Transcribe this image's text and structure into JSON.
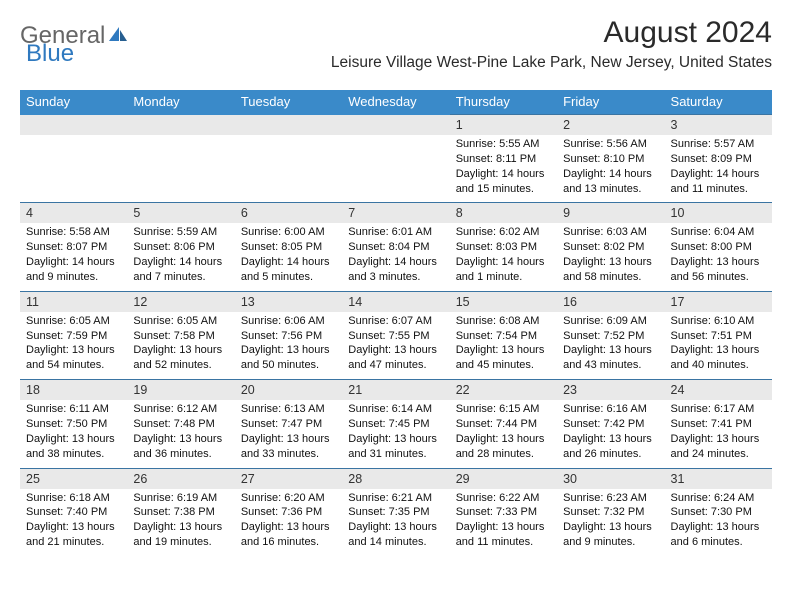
{
  "logo": {
    "text_part1": "General",
    "text_part2": "Blue",
    "icon_color": "#2f79bf"
  },
  "header": {
    "month_title": "August 2024",
    "location": "Leisure Village West-Pine Lake Park, New Jersey, United States"
  },
  "colors": {
    "header_bg": "#3a8ac9",
    "divider": "#3a74a2",
    "daynum_bg": "#e9e9e9",
    "text": "#111111"
  },
  "day_names": [
    "Sunday",
    "Monday",
    "Tuesday",
    "Wednesday",
    "Thursday",
    "Friday",
    "Saturday"
  ],
  "weeks": [
    {
      "days": [
        {
          "n": "",
          "sr": "",
          "ss": "",
          "dl": ""
        },
        {
          "n": "",
          "sr": "",
          "ss": "",
          "dl": ""
        },
        {
          "n": "",
          "sr": "",
          "ss": "",
          "dl": ""
        },
        {
          "n": "",
          "sr": "",
          "ss": "",
          "dl": ""
        },
        {
          "n": "1",
          "sr": "Sunrise: 5:55 AM",
          "ss": "Sunset: 8:11 PM",
          "dl": "Daylight: 14 hours and 15 minutes."
        },
        {
          "n": "2",
          "sr": "Sunrise: 5:56 AM",
          "ss": "Sunset: 8:10 PM",
          "dl": "Daylight: 14 hours and 13 minutes."
        },
        {
          "n": "3",
          "sr": "Sunrise: 5:57 AM",
          "ss": "Sunset: 8:09 PM",
          "dl": "Daylight: 14 hours and 11 minutes."
        }
      ]
    },
    {
      "days": [
        {
          "n": "4",
          "sr": "Sunrise: 5:58 AM",
          "ss": "Sunset: 8:07 PM",
          "dl": "Daylight: 14 hours and 9 minutes."
        },
        {
          "n": "5",
          "sr": "Sunrise: 5:59 AM",
          "ss": "Sunset: 8:06 PM",
          "dl": "Daylight: 14 hours and 7 minutes."
        },
        {
          "n": "6",
          "sr": "Sunrise: 6:00 AM",
          "ss": "Sunset: 8:05 PM",
          "dl": "Daylight: 14 hours and 5 minutes."
        },
        {
          "n": "7",
          "sr": "Sunrise: 6:01 AM",
          "ss": "Sunset: 8:04 PM",
          "dl": "Daylight: 14 hours and 3 minutes."
        },
        {
          "n": "8",
          "sr": "Sunrise: 6:02 AM",
          "ss": "Sunset: 8:03 PM",
          "dl": "Daylight: 14 hours and 1 minute."
        },
        {
          "n": "9",
          "sr": "Sunrise: 6:03 AM",
          "ss": "Sunset: 8:02 PM",
          "dl": "Daylight: 13 hours and 58 minutes."
        },
        {
          "n": "10",
          "sr": "Sunrise: 6:04 AM",
          "ss": "Sunset: 8:00 PM",
          "dl": "Daylight: 13 hours and 56 minutes."
        }
      ]
    },
    {
      "days": [
        {
          "n": "11",
          "sr": "Sunrise: 6:05 AM",
          "ss": "Sunset: 7:59 PM",
          "dl": "Daylight: 13 hours and 54 minutes."
        },
        {
          "n": "12",
          "sr": "Sunrise: 6:05 AM",
          "ss": "Sunset: 7:58 PM",
          "dl": "Daylight: 13 hours and 52 minutes."
        },
        {
          "n": "13",
          "sr": "Sunrise: 6:06 AM",
          "ss": "Sunset: 7:56 PM",
          "dl": "Daylight: 13 hours and 50 minutes."
        },
        {
          "n": "14",
          "sr": "Sunrise: 6:07 AM",
          "ss": "Sunset: 7:55 PM",
          "dl": "Daylight: 13 hours and 47 minutes."
        },
        {
          "n": "15",
          "sr": "Sunrise: 6:08 AM",
          "ss": "Sunset: 7:54 PM",
          "dl": "Daylight: 13 hours and 45 minutes."
        },
        {
          "n": "16",
          "sr": "Sunrise: 6:09 AM",
          "ss": "Sunset: 7:52 PM",
          "dl": "Daylight: 13 hours and 43 minutes."
        },
        {
          "n": "17",
          "sr": "Sunrise: 6:10 AM",
          "ss": "Sunset: 7:51 PM",
          "dl": "Daylight: 13 hours and 40 minutes."
        }
      ]
    },
    {
      "days": [
        {
          "n": "18",
          "sr": "Sunrise: 6:11 AM",
          "ss": "Sunset: 7:50 PM",
          "dl": "Daylight: 13 hours and 38 minutes."
        },
        {
          "n": "19",
          "sr": "Sunrise: 6:12 AM",
          "ss": "Sunset: 7:48 PM",
          "dl": "Daylight: 13 hours and 36 minutes."
        },
        {
          "n": "20",
          "sr": "Sunrise: 6:13 AM",
          "ss": "Sunset: 7:47 PM",
          "dl": "Daylight: 13 hours and 33 minutes."
        },
        {
          "n": "21",
          "sr": "Sunrise: 6:14 AM",
          "ss": "Sunset: 7:45 PM",
          "dl": "Daylight: 13 hours and 31 minutes."
        },
        {
          "n": "22",
          "sr": "Sunrise: 6:15 AM",
          "ss": "Sunset: 7:44 PM",
          "dl": "Daylight: 13 hours and 28 minutes."
        },
        {
          "n": "23",
          "sr": "Sunrise: 6:16 AM",
          "ss": "Sunset: 7:42 PM",
          "dl": "Daylight: 13 hours and 26 minutes."
        },
        {
          "n": "24",
          "sr": "Sunrise: 6:17 AM",
          "ss": "Sunset: 7:41 PM",
          "dl": "Daylight: 13 hours and 24 minutes."
        }
      ]
    },
    {
      "days": [
        {
          "n": "25",
          "sr": "Sunrise: 6:18 AM",
          "ss": "Sunset: 7:40 PM",
          "dl": "Daylight: 13 hours and 21 minutes."
        },
        {
          "n": "26",
          "sr": "Sunrise: 6:19 AM",
          "ss": "Sunset: 7:38 PM",
          "dl": "Daylight: 13 hours and 19 minutes."
        },
        {
          "n": "27",
          "sr": "Sunrise: 6:20 AM",
          "ss": "Sunset: 7:36 PM",
          "dl": "Daylight: 13 hours and 16 minutes."
        },
        {
          "n": "28",
          "sr": "Sunrise: 6:21 AM",
          "ss": "Sunset: 7:35 PM",
          "dl": "Daylight: 13 hours and 14 minutes."
        },
        {
          "n": "29",
          "sr": "Sunrise: 6:22 AM",
          "ss": "Sunset: 7:33 PM",
          "dl": "Daylight: 13 hours and 11 minutes."
        },
        {
          "n": "30",
          "sr": "Sunrise: 6:23 AM",
          "ss": "Sunset: 7:32 PM",
          "dl": "Daylight: 13 hours and 9 minutes."
        },
        {
          "n": "31",
          "sr": "Sunrise: 6:24 AM",
          "ss": "Sunset: 7:30 PM",
          "dl": "Daylight: 13 hours and 6 minutes."
        }
      ]
    }
  ]
}
